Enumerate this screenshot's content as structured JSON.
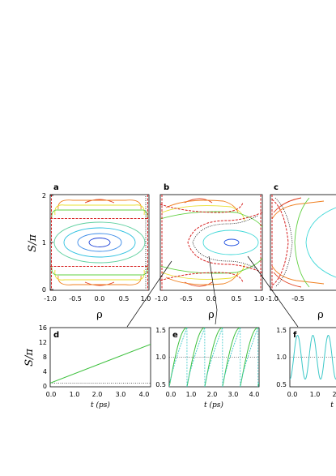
{
  "chart_data": [
    {
      "panel": "a",
      "type": "line",
      "xlabel": "ρ",
      "ylabel": "S/π",
      "xlim": [
        -1,
        1
      ],
      "ylim": [
        0,
        2
      ],
      "xticks": [
        "-1.0",
        "-0.5",
        "0.0",
        "0.5",
        "1.0"
      ],
      "yticks": [
        "0",
        "1",
        "2"
      ],
      "contours": [
        {
          "cx": 0,
          "cy": 1,
          "rx": 0.22,
          "ry": 0.09,
          "color": "#1a3fd6"
        },
        {
          "cx": 0,
          "cy": 1,
          "rx": 0.45,
          "ry": 0.17,
          "color": "#3a8ae8"
        },
        {
          "cx": 0,
          "cy": 1,
          "rx": 0.72,
          "ry": 0.27,
          "color": "#2cc0e0"
        },
        {
          "cx": 0,
          "cy": 1,
          "rx": 0.93,
          "ry": 0.38,
          "color": "#5fd0a0"
        }
      ],
      "separatrices": [
        0.5,
        1.5
      ],
      "outer_contours_top": [
        1.93,
        1.82,
        1.72
      ],
      "outer_contours_bottom": [
        0.07,
        0.18,
        0.28
      ]
    },
    {
      "panel": "b",
      "type": "line",
      "xlabel": "ρ",
      "ylabel": "",
      "xlim": [
        -1,
        1
      ],
      "ylim": [
        0,
        2
      ],
      "xticks": [
        "-1.0",
        "-0.5",
        "0.0",
        "0.5",
        "1.0"
      ],
      "center": [
        0.5,
        1.0
      ]
    },
    {
      "panel": "c",
      "type": "line",
      "xlabel": "ρ",
      "ylabel": "",
      "xlim": [
        -1,
        1
      ],
      "ylim": [
        0,
        2
      ],
      "xticks": [
        "-1.0",
        "-0.5"
      ]
    },
    {
      "panel": "d",
      "type": "line",
      "xlabel": "t (ps)",
      "ylabel": "S/π",
      "xlim": [
        0,
        4.3
      ],
      "ylim": [
        0,
        16
      ],
      "xticks": [
        "0.0",
        "1.0",
        "2.0",
        "3.0",
        "4.0"
      ],
      "yticks": [
        "0",
        "4",
        "8",
        "12",
        "16"
      ],
      "series": [
        {
          "x": [
            0,
            4.3
          ],
          "values": [
            1.0,
            11.5
          ],
          "color": "#3cc03c"
        }
      ],
      "reference_line": 1
    },
    {
      "panel": "e",
      "type": "line",
      "xlabel": "t (ps)",
      "ylabel": "",
      "xlim": [
        0,
        4.3
      ],
      "ylim": [
        0.5,
        1.5
      ],
      "xticks": [
        "0.0",
        "1.0",
        "2.0",
        "3.0",
        "4.0"
      ],
      "yticks": [
        "0.5",
        "1.0",
        "1.5"
      ],
      "sawtooth_period": 0.85,
      "reference_line": 1.0
    },
    {
      "panel": "f",
      "type": "line",
      "xlabel": "t",
      "ylabel": "",
      "xlim": [
        0,
        2.2
      ],
      "ylim": [
        0.5,
        1.5
      ],
      "xticks": [
        "0.0",
        "1.0",
        "2"
      ],
      "yticks": [
        "0.5",
        "1.0",
        "1.5"
      ],
      "oscillation": {
        "mean": 1.0,
        "amplitude": 0.37,
        "period": 0.72
      },
      "reference_line": 1.0
    }
  ],
  "colors": {
    "separatrix": "#d62020",
    "contour_red": "#e04020",
    "contour_orange": "#f08020",
    "contour_yellow": "#e8e030",
    "contour_green": "#60d040",
    "contour_cyan": "#40d8d8",
    "contour_blue": "#2050e0",
    "trace_green": "#3cc03c",
    "trace_cyan": "#3cc8c8",
    "guide": "#555555"
  }
}
